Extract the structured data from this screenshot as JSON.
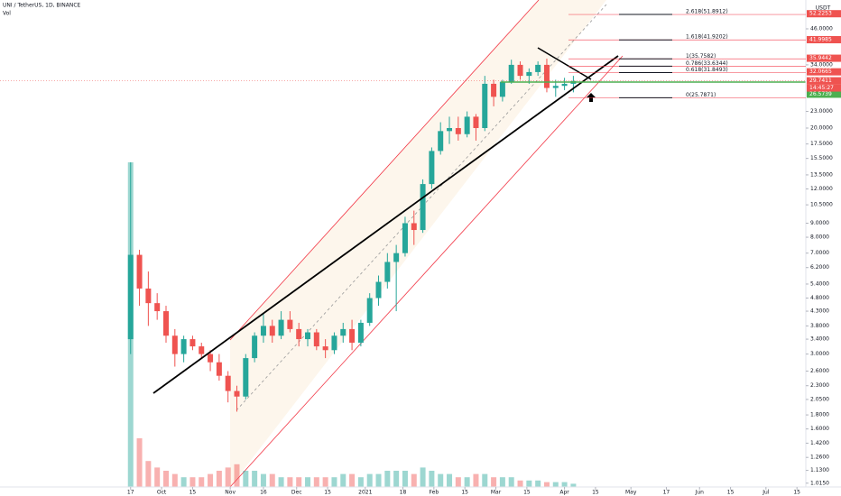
{
  "chart_data": {
    "type": "candlestick",
    "title": "UNI / TetherUS, 1D, BINANCE",
    "volume_label": "Vol",
    "currency": "USDT",
    "log_scale": true,
    "up_color": "#26a69a",
    "down_color": "#ef5350",
    "x": [
      0,
      4,
      8,
      12,
      16,
      20,
      24,
      28,
      32,
      36,
      40,
      44,
      48,
      52,
      56,
      60,
      64,
      68,
      72,
      76,
      80,
      84,
      88,
      92,
      96,
      100,
      104,
      108,
      112,
      116,
      120,
      124,
      128,
      132,
      136,
      140,
      144,
      148,
      152,
      156,
      160,
      164,
      168,
      172,
      176,
      180,
      184,
      188,
      192,
      196,
      200
    ],
    "open": [
      3.4,
      6.9,
      5.2,
      4.6,
      4.3,
      3.5,
      3.0,
      3.4,
      3.2,
      3.0,
      2.8,
      2.5,
      2.2,
      2.1,
      2.9,
      3.5,
      3.8,
      3.5,
      4.0,
      3.7,
      3.4,
      3.6,
      3.2,
      3.1,
      3.5,
      3.7,
      3.3,
      3.9,
      4.8,
      5.5,
      6.5,
      7.0,
      9.0,
      8.5,
      12.5,
      16.5,
      19.5,
      20.0,
      19.0,
      22.0,
      20.0,
      29.0,
      26.0,
      29.5,
      34.0,
      31.0,
      32.0,
      34.0,
      28.0,
      28.5,
      29.0
    ],
    "high": [
      15.0,
      7.2,
      6.0,
      5.0,
      4.5,
      3.7,
      3.5,
      3.5,
      3.3,
      3.1,
      3.0,
      2.6,
      2.3,
      3.0,
      3.6,
      4.2,
      4.0,
      4.3,
      4.3,
      3.9,
      3.7,
      3.7,
      3.4,
      3.6,
      3.9,
      4.0,
      4.0,
      5.0,
      5.8,
      7.0,
      7.5,
      9.5,
      10.0,
      13.0,
      17.0,
      21.0,
      22.0,
      22.0,
      23.0,
      22.5,
      31.0,
      30.0,
      30.0,
      35.5,
      35.0,
      33.0,
      35.0,
      35.8,
      30.0,
      30.5,
      31.0
    ],
    "low": [
      3.0,
      4.5,
      3.8,
      4.0,
      3.3,
      2.7,
      2.8,
      3.1,
      2.9,
      2.6,
      2.4,
      2.0,
      1.85,
      2.05,
      2.8,
      3.3,
      3.3,
      3.4,
      3.6,
      3.2,
      3.2,
      3.1,
      2.9,
      3.0,
      3.3,
      3.1,
      3.2,
      3.8,
      4.5,
      5.2,
      4.3,
      6.8,
      7.5,
      8.3,
      12.0,
      16.0,
      17.5,
      18.0,
      18.5,
      18.0,
      19.5,
      24.0,
      25.0,
      29.0,
      30.0,
      29.0,
      31.0,
      27.0,
      26.0,
      27.5,
      27.0
    ],
    "close": [
      6.9,
      5.2,
      4.6,
      4.3,
      3.5,
      3.0,
      3.4,
      3.2,
      3.0,
      2.8,
      2.5,
      2.2,
      2.1,
      2.9,
      3.5,
      3.8,
      3.5,
      4.0,
      3.7,
      3.4,
      3.6,
      3.2,
      3.1,
      3.5,
      3.7,
      3.3,
      3.9,
      4.8,
      5.5,
      6.5,
      7.0,
      9.0,
      8.5,
      12.5,
      16.5,
      19.5,
      20.0,
      19.0,
      22.0,
      20.0,
      29.0,
      26.0,
      29.5,
      34.0,
      31.0,
      32.0,
      34.0,
      28.0,
      28.5,
      29.0,
      29.7
    ],
    "volume": [
      100,
      15,
      8,
      6,
      5,
      4,
      3,
      3,
      3,
      4,
      5,
      6,
      7,
      5,
      5,
      4,
      4,
      3,
      3,
      3,
      3,
      3,
      3,
      3,
      4,
      4,
      3,
      4,
      4,
      5,
      5,
      5,
      4,
      6,
      5,
      4,
      4,
      3,
      3,
      4,
      4,
      3,
      3,
      3,
      2,
      2,
      2,
      1.5,
      1.5,
      1.5,
      1
    ],
    "volume_ylim": [
      0,
      100
    ],
    "xlim": [
      -59,
      305
    ],
    "xticks": [
      {
        "value": 0,
        "label": "17"
      },
      {
        "value": 14,
        "label": "Oct"
      },
      {
        "value": 28,
        "label": "15"
      },
      {
        "value": 45,
        "label": "Nov"
      },
      {
        "value": 60,
        "label": "16"
      },
      {
        "value": 75,
        "label": "Dec"
      },
      {
        "value": 89,
        "label": "15"
      },
      {
        "value": 106,
        "label": "2021"
      },
      {
        "value": 123,
        "label": "18"
      },
      {
        "value": 137,
        "label": "Feb"
      },
      {
        "value": 151,
        "label": "15"
      },
      {
        "value": 165,
        "label": "Mar"
      },
      {
        "value": 179,
        "label": "15"
      },
      {
        "value": 196,
        "label": "Apr"
      },
      {
        "value": 210,
        "label": "15"
      },
      {
        "value": 226,
        "label": "May"
      },
      {
        "value": 242,
        "label": "17"
      },
      {
        "value": 257,
        "label": "Jun"
      },
      {
        "value": 271,
        "label": "15"
      },
      {
        "value": 287,
        "label": "Jul"
      },
      {
        "value": 301,
        "label": "15"
      }
    ],
    "ylim": [
      0.983,
      58.6
    ],
    "yticks": [
      {
        "value": 46,
        "label": "46.0000"
      },
      {
        "value": 34,
        "label": "34.0000"
      },
      {
        "value": 23,
        "label": "23.0000"
      },
      {
        "value": 20,
        "label": "20.0000"
      },
      {
        "value": 17.5,
        "label": "17.5000"
      },
      {
        "value": 15.5,
        "label": "15.5000"
      },
      {
        "value": 13.5,
        "label": "13.5000"
      },
      {
        "value": 12,
        "label": "12.0000"
      },
      {
        "value": 10.5,
        "label": "10.5000"
      },
      {
        "value": 9,
        "label": "9.0000"
      },
      {
        "value": 8,
        "label": "8.0000"
      },
      {
        "value": 7,
        "label": "7.0000"
      },
      {
        "value": 6.2,
        "label": "6.2000"
      },
      {
        "value": 5.4,
        "label": "5.4000"
      },
      {
        "value": 4.8,
        "label": "4.8000"
      },
      {
        "value": 4.3,
        "label": "4.3000"
      },
      {
        "value": 3.8,
        "label": "3.8000"
      },
      {
        "value": 3.4,
        "label": "3.4000"
      },
      {
        "value": 3,
        "label": "3.0000"
      },
      {
        "value": 2.6,
        "label": "2.6000"
      },
      {
        "value": 2.3,
        "label": "2.3000"
      },
      {
        "value": 2.05,
        "label": "2.0500"
      },
      {
        "value": 1.8,
        "label": "1.8000"
      },
      {
        "value": 1.6,
        "label": "1.6000"
      },
      {
        "value": 1.42,
        "label": "1.4200"
      },
      {
        "value": 1.26,
        "label": "1.2600"
      },
      {
        "value": 1.13,
        "label": "1.1300"
      },
      {
        "value": 1.015,
        "label": "1.0150"
      }
    ],
    "fib": [
      {
        "value": 51.8912,
        "label": "2.618(51.8912)"
      },
      {
        "value": 41.9202,
        "label": "1.618(41.9202)"
      },
      {
        "value": 35.7582,
        "label": "1(35.7582)"
      },
      {
        "value": 33.6344,
        "label": "0.786(33.6344)"
      },
      {
        "value": 31.8493,
        "label": "0.618(31.8493)"
      },
      {
        "value": 25.7871,
        "label": "0(25.7871)"
      }
    ],
    "price_labels": [
      {
        "value": 52.2253,
        "label": "52.2253",
        "color": "#ef5350"
      },
      {
        "value": 41.9985,
        "label": "41.9985",
        "color": "#ef5350"
      },
      {
        "value": 35.9442,
        "label": "35.9442",
        "color": "#ef5350"
      },
      {
        "value": 32.0665,
        "label": "32.0665",
        "color": "#ef5350"
      },
      {
        "value": 29.7411,
        "label": "29.7411",
        "color": "#ef5350"
      },
      {
        "value": 26.5739,
        "label": "26.5739",
        "color": "#4caf50"
      }
    ],
    "countdown": "14:45:27"
  }
}
